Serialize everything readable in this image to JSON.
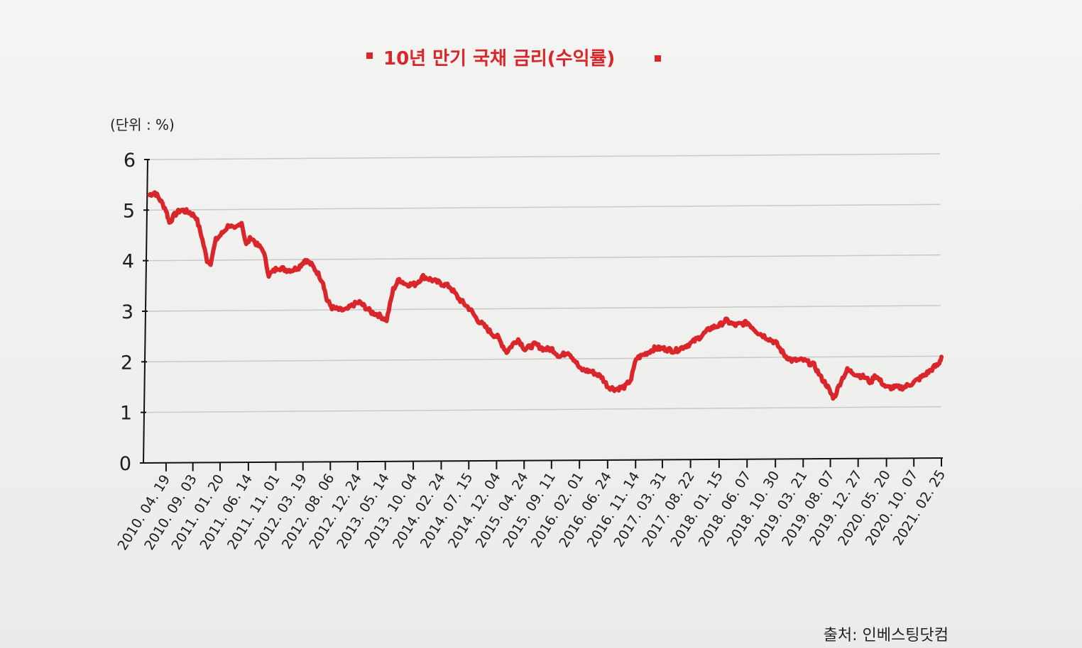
{
  "chart_data": {
    "type": "line",
    "title": "10년 만기 국채 금리(수익률)",
    "unit_label": "(단위 : %)",
    "source": "출처: 인베스팅닷컴",
    "ylim": [
      0,
      6
    ],
    "yticks": [
      "0",
      "1",
      "2",
      "3",
      "4",
      "5",
      "6"
    ],
    "grid": true,
    "line_color": "#d8262a",
    "title_marker_color": "#d8262a",
    "x_tick_labels": [
      "2010. 04. 19",
      "2010. 09. 03",
      "2011. 01. 20",
      "2011. 06. 14",
      "2011. 11. 01",
      "2012. 03. 19",
      "2012. 08. 06",
      "2012. 12. 24",
      "2013. 05. 14",
      "2013. 10. 04",
      "2014. 02. 24",
      "2014. 07. 15",
      "2014. 12. 04",
      "2015. 04. 24",
      "2015. 09. 11",
      "2016. 02. 01",
      "2016. 06. 24",
      "2016. 11. 14",
      "2017. 03. 31",
      "2017. 08. 22",
      "2018. 01. 15",
      "2018. 06. 07",
      "2018. 10. 30",
      "2019. 03. 21",
      "2019. 08. 07",
      "2019. 12. 27",
      "2020. 05. 20",
      "2020. 10. 07",
      "2021. 02. 25"
    ],
    "x_range": [
      "2010. 01. 04",
      "2021. 02. 25"
    ],
    "series": [
      {
        "values": [
          [
            "2010. 01. 04",
            5.3
          ],
          [
            "2010. 02. 01",
            5.35
          ],
          [
            "2010. 03. 01",
            5.2
          ],
          [
            "2010. 04. 01",
            5.0
          ],
          [
            "2010. 04. 19",
            4.75
          ],
          [
            "2010. 05. 15",
            4.9
          ],
          [
            "2010. 06. 15",
            5.0
          ],
          [
            "2010. 08. 01",
            4.95
          ],
          [
            "2010. 09. 03",
            4.85
          ],
          [
            "2010. 10. 01",
            4.5
          ],
          [
            "2010. 11. 01",
            4.0
          ],
          [
            "2010. 11. 20",
            3.95
          ],
          [
            "2010. 12. 15",
            4.4
          ],
          [
            "2011. 01. 20",
            4.55
          ],
          [
            "2011. 02. 20",
            4.7
          ],
          [
            "2011. 03. 20",
            4.6
          ],
          [
            "2011. 04. 25",
            4.75
          ],
          [
            "2011. 05. 20",
            4.3
          ],
          [
            "2011. 06. 14",
            4.45
          ],
          [
            "2011. 07. 15",
            4.3
          ],
          [
            "2011. 08. 15",
            4.2
          ],
          [
            "2011. 09. 15",
            3.7
          ],
          [
            "2011. 11. 01",
            3.85
          ],
          [
            "2011. 12. 15",
            3.8
          ],
          [
            "2012. 01. 15",
            3.8
          ],
          [
            "2012. 02. 15",
            3.85
          ],
          [
            "2012. 03. 19",
            4.0
          ],
          [
            "2012. 04. 20",
            3.9
          ],
          [
            "2012. 05. 20",
            3.75
          ],
          [
            "2012. 06. 20",
            3.55
          ],
          [
            "2012. 07. 10",
            3.2
          ],
          [
            "2012. 08. 06",
            3.05
          ],
          [
            "2012. 09. 15",
            3.0
          ],
          [
            "2012. 10. 20",
            3.0
          ],
          [
            "2012. 11. 20",
            3.1
          ],
          [
            "2012. 12. 24",
            3.15
          ],
          [
            "2013. 01. 25",
            3.05
          ],
          [
            "2013. 02. 25",
            2.95
          ],
          [
            "2013. 04. 01",
            2.9
          ],
          [
            "2013. 05. 14",
            2.8
          ],
          [
            "2013. 06. 15",
            3.4
          ],
          [
            "2013. 07. 15",
            3.6
          ],
          [
            "2013. 08. 20",
            3.5
          ],
          [
            "2013. 10. 04",
            3.5
          ],
          [
            "2013. 11. 15",
            3.65
          ],
          [
            "2013. 12. 20",
            3.6
          ],
          [
            "2014. 01. 20",
            3.55
          ],
          [
            "2014. 02. 24",
            3.5
          ],
          [
            "2014. 04. 01",
            3.45
          ],
          [
            "2014. 05. 20",
            3.2
          ],
          [
            "2014. 07. 15",
            3.0
          ],
          [
            "2014. 08. 20",
            2.8
          ],
          [
            "2014. 10. 01",
            2.65
          ],
          [
            "2014. 11. 10",
            2.5
          ],
          [
            "2014. 12. 04",
            2.45
          ],
          [
            "2015. 01. 20",
            2.15
          ],
          [
            "2015. 02. 20",
            2.3
          ],
          [
            "2015. 03. 20",
            2.4
          ],
          [
            "2015. 04. 24",
            2.2
          ],
          [
            "2015. 06. 15",
            2.3
          ],
          [
            "2015. 07. 30",
            2.2
          ],
          [
            "2015. 09. 11",
            2.2
          ],
          [
            "2015. 10. 20",
            2.05
          ],
          [
            "2015. 12. 01",
            2.15
          ],
          [
            "2016. 01. 10",
            1.95
          ],
          [
            "2016. 02. 01",
            1.8
          ],
          [
            "2016. 04. 01",
            1.75
          ],
          [
            "2016. 05. 20",
            1.65
          ],
          [
            "2016. 06. 24",
            1.45
          ],
          [
            "2016. 08. 01",
            1.4
          ],
          [
            "2016. 09. 20",
            1.45
          ],
          [
            "2016. 10. 20",
            1.6
          ],
          [
            "2016. 11. 14",
            2.0
          ],
          [
            "2017. 01. 01",
            2.1
          ],
          [
            "2017. 02. 15",
            2.2
          ],
          [
            "2017. 03. 31",
            2.2
          ],
          [
            "2017. 06. 01",
            2.15
          ],
          [
            "2017. 08. 22",
            2.3
          ],
          [
            "2017. 10. 15",
            2.45
          ],
          [
            "2017. 12. 01",
            2.6
          ],
          [
            "2018. 01. 15",
            2.65
          ],
          [
            "2018. 02. 15",
            2.75
          ],
          [
            "2018. 04. 01",
            2.65
          ],
          [
            "2018. 06. 07",
            2.7
          ],
          [
            "2018. 08. 01",
            2.5
          ],
          [
            "2018. 10. 30",
            2.3
          ],
          [
            "2018. 12. 15",
            2.05
          ],
          [
            "2019. 01. 20",
            1.95
          ],
          [
            "2019. 03. 21",
            1.95
          ],
          [
            "2019. 05. 15",
            1.85
          ],
          [
            "2019. 06. 20",
            1.6
          ],
          [
            "2019. 07. 20",
            1.45
          ],
          [
            "2019. 08. 07",
            1.3
          ],
          [
            "2019. 08. 25",
            1.2
          ],
          [
            "2019. 10. 01",
            1.55
          ],
          [
            "2019. 11. 01",
            1.75
          ],
          [
            "2019. 12. 27",
            1.65
          ],
          [
            "2020. 02. 01",
            1.6
          ],
          [
            "2020. 03. 01",
            1.5
          ],
          [
            "2020. 03. 20",
            1.65
          ],
          [
            "2020. 05. 20",
            1.4
          ],
          [
            "2020. 07. 15",
            1.4
          ],
          [
            "2020. 08. 15",
            1.4
          ],
          [
            "2020. 10. 07",
            1.5
          ],
          [
            "2020. 11. 15",
            1.6
          ],
          [
            "2020. 12. 20",
            1.7
          ],
          [
            "2021. 01. 20",
            1.8
          ],
          [
            "2021. 02. 10",
            1.85
          ],
          [
            "2021. 02. 25",
            2.0
          ]
        ]
      }
    ]
  }
}
